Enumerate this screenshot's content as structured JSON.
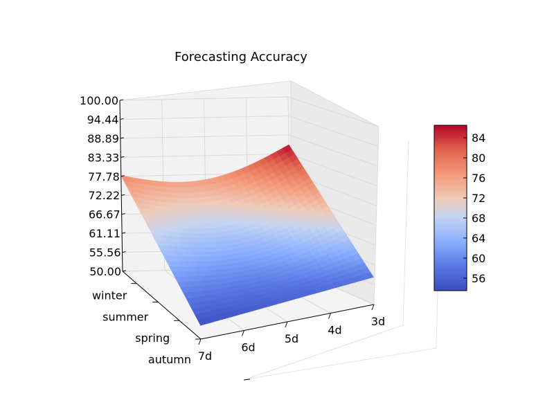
{
  "chart_data": {
    "type": "surface3d",
    "title": "Forecasting Accuracy",
    "xlabel": "",
    "ylabel": "",
    "zlabel": "",
    "x_ticks": [
      "7d",
      "6d",
      "5d",
      "4d",
      "3d"
    ],
    "y_ticks": [
      "autumn",
      "spring",
      "summer",
      "winter"
    ],
    "z_ticks": [
      "50.00",
      "55.56",
      "61.11",
      "66.67",
      "72.22",
      "77.78",
      "83.33",
      "88.89",
      "94.44",
      "100.00"
    ],
    "zlim": [
      50,
      100
    ],
    "grid": true,
    "colormap": "coolwarm",
    "colorbar": {
      "ticks": [
        "84",
        "80",
        "76",
        "72",
        "68",
        "64",
        "60",
        "56"
      ],
      "range": [
        53.5,
        86.5
      ],
      "placement": "right"
    },
    "surface_corner_values": {
      "7d_autumn": 54,
      "3d_autumn": 58,
      "7d_winter": 78,
      "3d_winter": 86
    },
    "colors": {
      "low": "#3b4cc0",
      "mid": "#dddddd",
      "high": "#b40426"
    }
  }
}
